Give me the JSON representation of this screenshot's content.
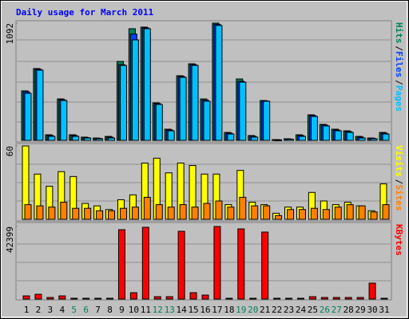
{
  "chart_data": [
    {
      "type": "bar",
      "title": "Daily usage for March 2011",
      "ylim": [
        0,
        1092
      ],
      "yticks": [
        1092
      ],
      "legend_separator": "/",
      "series": [
        {
          "name": "Hits",
          "color": "#00805c",
          "values": [
            461,
            669,
            52,
            386,
            52,
            30,
            22,
            37,
            735,
            1040,
            1055,
            349,
            104,
            602,
            713,
            386,
            1092,
            74,
            572,
            45,
            371,
            7,
            15,
            52,
            238,
            149,
            104,
            89,
            37,
            22,
            74
          ]
        },
        {
          "name": "Files",
          "color": "#0040ff",
          "values": [
            452,
            662,
            45,
            379,
            45,
            26,
            19,
            30,
            705,
            990,
            1048,
            342,
            97,
            595,
            706,
            375,
            1081,
            67,
            550,
            38,
            368,
            6,
            12,
            45,
            231,
            142,
            97,
            82,
            30,
            19,
            67
          ]
        },
        {
          "name": "Pages",
          "color": "#00c0ff",
          "values": [
            438,
            654,
            37,
            371,
            37,
            22,
            15,
            22,
            698,
            936,
            1040,
            334,
            89,
            587,
            698,
            364,
            1070,
            59,
            542,
            30,
            364,
            5,
            10,
            37,
            223,
            134,
            89,
            74,
            22,
            15,
            59
          ]
        }
      ]
    },
    {
      "type": "bar",
      "ylim": [
        0,
        60
      ],
      "yticks": [
        60
      ],
      "legend_separator": "/",
      "series": [
        {
          "name": "Visits",
          "color": "#ffff00",
          "values": [
            60,
            37,
            27,
            39,
            35,
            13,
            11,
            8,
            16,
            20,
            46,
            50,
            38,
            46,
            44,
            37,
            37,
            12,
            40,
            14,
            12,
            5,
            10,
            10,
            22,
            15,
            12,
            14,
            11,
            7,
            29
          ]
        },
        {
          "name": "Sites",
          "color": "#ff8000",
          "values": [
            12,
            11,
            10,
            14,
            9,
            9,
            7,
            7,
            9,
            10,
            18,
            12,
            10,
            12,
            10,
            13,
            15,
            10,
            18,
            11,
            11,
            3,
            8,
            8,
            9,
            8,
            10,
            12,
            11,
            6,
            12
          ]
        }
      ]
    },
    {
      "type": "bar",
      "ylim": [
        0,
        42399
      ],
      "yticks": [
        42399
      ],
      "series": [
        {
          "name": "KBytes",
          "color": "#ff0000",
          "values": [
            1860,
            2800,
            930,
            1860,
            470,
            470,
            470,
            470,
            40535,
            3730,
            41933,
            1400,
            1400,
            39603,
            3730,
            2330,
            42399,
            470,
            41000,
            470,
            39137,
            470,
            470,
            470,
            1400,
            930,
            930,
            930,
            930,
            9318,
            470
          ]
        }
      ],
      "categories": [
        "1",
        "2",
        "3",
        "4",
        "5",
        "6",
        "7",
        "8",
        "9",
        "10",
        "11",
        "12",
        "13",
        "14",
        "15",
        "16",
        "17",
        "18",
        "19",
        "20",
        "21",
        "22",
        "23",
        "24",
        "25",
        "26",
        "27",
        "28",
        "29",
        "30",
        "31"
      ],
      "category_colors": [
        "#000000",
        "#000000",
        "#000000",
        "#000000",
        "#00805c",
        "#00805c",
        "#000000",
        "#000000",
        "#000000",
        "#000000",
        "#000000",
        "#00805c",
        "#00805c",
        "#000000",
        "#000000",
        "#000000",
        "#000000",
        "#000000",
        "#00805c",
        "#00805c",
        "#000000",
        "#000000",
        "#000000",
        "#000000",
        "#000000",
        "#00805c",
        "#00805c",
        "#000000",
        "#000000",
        "#000000",
        "#000000"
      ]
    }
  ]
}
